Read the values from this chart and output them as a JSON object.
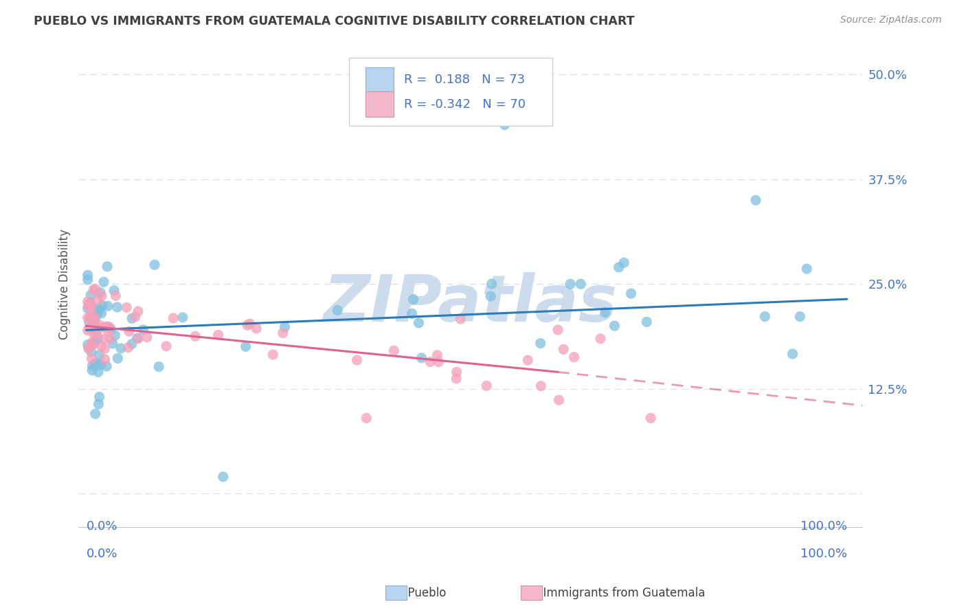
{
  "title": "PUEBLO VS IMMIGRANTS FROM GUATEMALA COGNITIVE DISABILITY CORRELATION CHART",
  "source": "Source: ZipAtlas.com",
  "ylabel": "Cognitive Disability",
  "ytick_positions": [
    0.0,
    0.125,
    0.25,
    0.375,
    0.5
  ],
  "ytick_labels": [
    "",
    "12.5%",
    "25.0%",
    "37.5%",
    "50.0%"
  ],
  "xlim": [
    -0.01,
    1.02
  ],
  "ylim": [
    -0.04,
    0.54
  ],
  "series1_color": "#7fbfdf",
  "series2_color": "#f4a0b8",
  "series1_name": "Pueblo",
  "series2_name": "Immigrants from Guatemala",
  "trend1_color": "#2b7bba",
  "trend2_color": "#e06090",
  "legend_R1": "0.188",
  "legend_N1": "73",
  "legend_R2": "-0.342",
  "legend_N2": "70",
  "legend_box_color1": "#b8d4ee",
  "legend_box_color2": "#f4b8cc",
  "watermark": "ZIPatlas",
  "watermark_color": "#ccdcec",
  "background_color": "#ffffff",
  "grid_color": "#d8e0e8",
  "title_color": "#404040",
  "source_color": "#909090",
  "axis_label_color": "#4472c4",
  "trend1_x0": 0.0,
  "trend1_x1": 1.0,
  "trend1_y0": 0.195,
  "trend1_y1": 0.232,
  "trend2_x0": 0.0,
  "trend2_x1": 0.62,
  "trend2_y0": 0.2,
  "trend2_y1": 0.145,
  "trend2_dash_x0": 0.62,
  "trend2_dash_x1": 1.02,
  "trend2_dash_y0": 0.145,
  "trend2_dash_y1": 0.105
}
